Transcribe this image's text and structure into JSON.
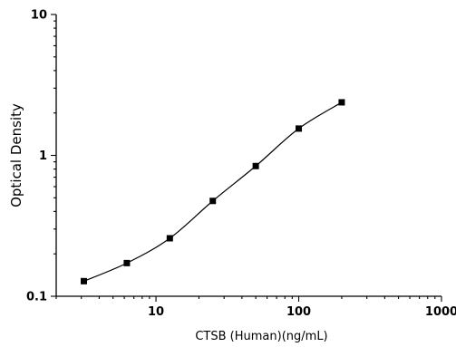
{
  "chart_data": {
    "type": "scatter",
    "xlabel": "CTSB (Human)(ng/mL)",
    "ylabel": "Optical Density",
    "x_scale": "log",
    "y_scale": "log",
    "xlim": [
      2,
      1000
    ],
    "ylim": [
      0.1,
      10
    ],
    "x_ticks": [
      {
        "value": 10,
        "label": "10"
      },
      {
        "value": 100,
        "label": "100"
      },
      {
        "value": 1000,
        "label": "1000"
      }
    ],
    "y_ticks": [
      {
        "value": 0.1,
        "label": "0.1"
      },
      {
        "value": 1,
        "label": "1"
      },
      {
        "value": 10,
        "label": "10"
      }
    ],
    "grid": false,
    "series": [
      {
        "marker": "square",
        "fit_line": true,
        "points": [
          {
            "x": 3.125,
            "y": 0.128
          },
          {
            "x": 6.25,
            "y": 0.172
          },
          {
            "x": 12.5,
            "y": 0.258
          },
          {
            "x": 25,
            "y": 0.475
          },
          {
            "x": 50,
            "y": 0.84
          },
          {
            "x": 100,
            "y": 1.55
          },
          {
            "x": 200,
            "y": 2.38
          }
        ]
      }
    ],
    "colors": {
      "axis": "#000000",
      "series": "#000000"
    }
  }
}
